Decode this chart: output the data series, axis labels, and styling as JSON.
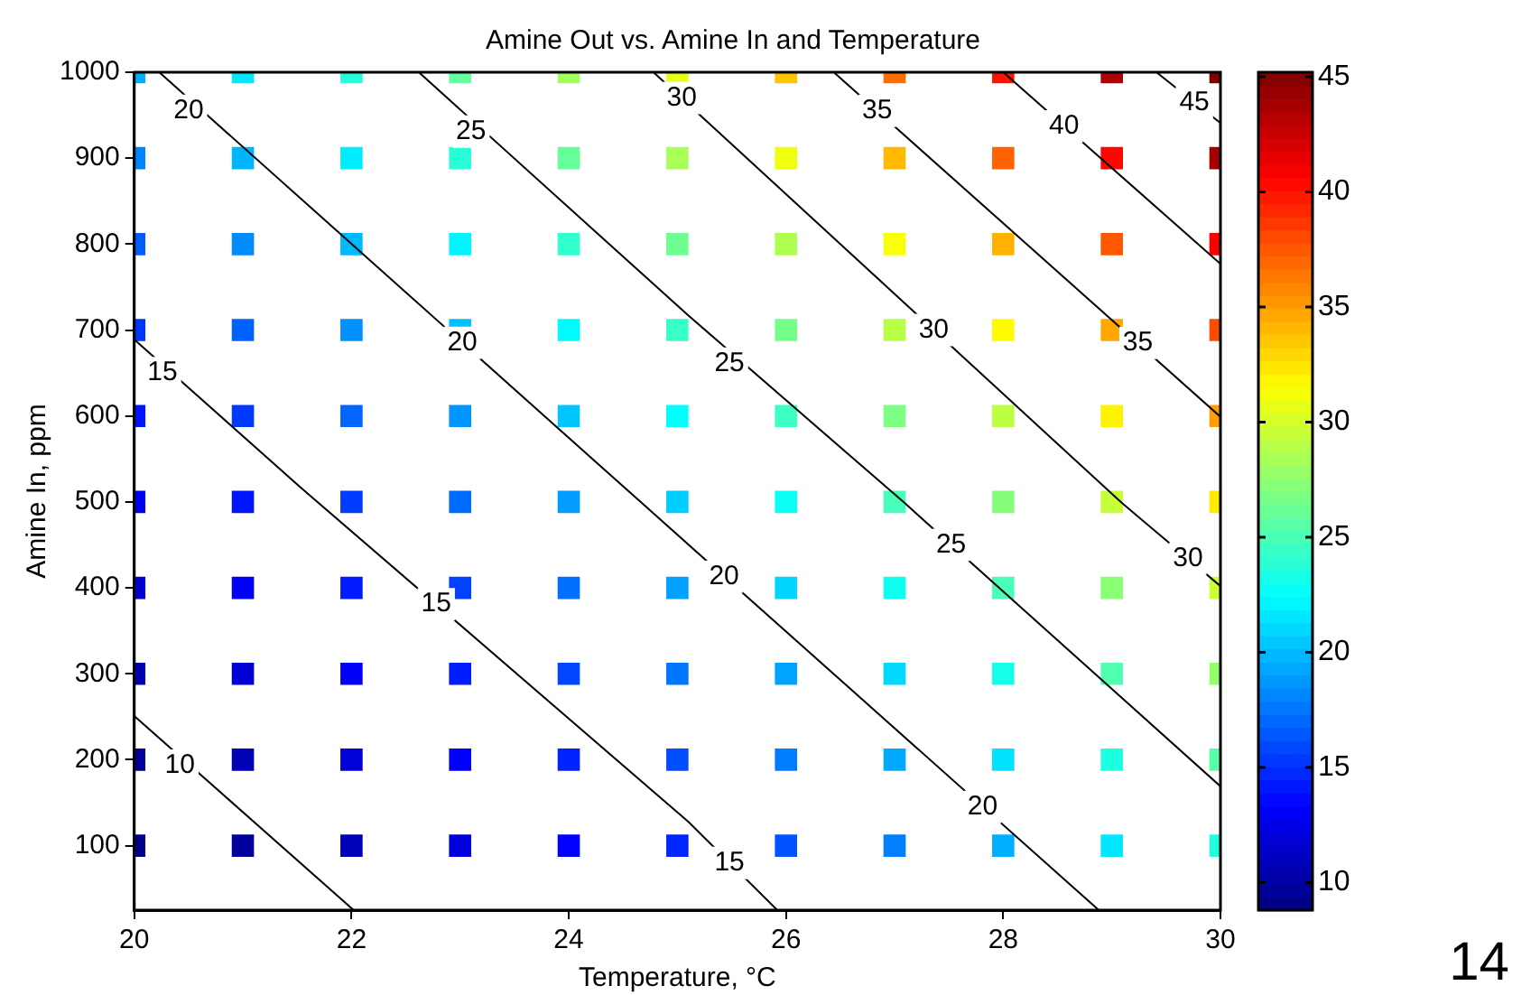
{
  "chart_data": {
    "type": "scatter",
    "title": "Amine Out vs. Amine In and Temperature",
    "xlabel": "Temperature, °C",
    "ylabel": "Amine In, ppm",
    "xlim": [
      20,
      30
    ],
    "xticks": [
      20,
      22,
      24,
      26,
      28,
      30
    ],
    "ylim": [
      25,
      1000
    ],
    "yticks": [
      100,
      200,
      300,
      400,
      500,
      600,
      700,
      800,
      900,
      1000
    ],
    "clim": [
      8.8,
      45.2
    ],
    "cticks": [
      10,
      15,
      20,
      25,
      30,
      35,
      40,
      45
    ],
    "grid": false,
    "legend": false,
    "marker": "square",
    "series": [
      {
        "type": "scatter",
        "x": [
          20,
          21,
          22,
          23,
          24,
          25,
          26,
          27,
          28,
          29,
          30,
          20,
          21,
          22,
          23,
          24,
          25,
          26,
          27,
          28,
          29,
          30,
          20,
          21,
          22,
          23,
          24,
          25,
          26,
          27,
          28,
          29,
          30,
          20,
          21,
          22,
          23,
          24,
          25,
          26,
          27,
          28,
          29,
          30,
          20,
          21,
          22,
          23,
          24,
          25,
          26,
          27,
          28,
          29,
          30,
          20,
          21,
          22,
          23,
          24,
          25,
          26,
          27,
          28,
          29,
          30,
          20,
          21,
          22,
          23,
          24,
          25,
          26,
          27,
          28,
          29,
          30,
          20,
          21,
          22,
          23,
          24,
          25,
          26,
          27,
          28,
          29,
          30,
          20,
          21,
          22,
          23,
          24,
          25,
          26,
          27,
          28,
          29,
          30,
          20,
          21,
          22,
          23,
          24,
          25,
          26,
          27,
          28,
          29,
          30
        ],
        "values": [
          100,
          100,
          100,
          100,
          100,
          100,
          100,
          100,
          100,
          100,
          100,
          200,
          200,
          200,
          200,
          200,
          200,
          200,
          200,
          200,
          200,
          200,
          300,
          300,
          300,
          300,
          300,
          300,
          300,
          300,
          300,
          300,
          300,
          400,
          400,
          400,
          400,
          400,
          400,
          400,
          400,
          400,
          400,
          400,
          500,
          500,
          500,
          500,
          500,
          500,
          500,
          500,
          500,
          500,
          500,
          600,
          600,
          600,
          600,
          600,
          600,
          600,
          600,
          600,
          600,
          600,
          700,
          700,
          700,
          700,
          700,
          700,
          700,
          700,
          700,
          700,
          700,
          800,
          800,
          800,
          800,
          800,
          800,
          800,
          800,
          800,
          800,
          800,
          900,
          900,
          900,
          900,
          900,
          900,
          900,
          900,
          900,
          900,
          900,
          1000,
          1000,
          1000,
          1000,
          1000,
          1000,
          1000,
          1000,
          1000,
          1000,
          1000
        ],
        "colors": [
          "#00008b",
          "#00009c",
          "#0000b8",
          "#0000dc",
          "#0001ff",
          "#0026ff",
          "#0053ff",
          "#0080ff",
          "#00afff",
          "#00e7ff",
          "#23ffdc",
          "#000099",
          "#0000b5",
          "#0000d9",
          "#0000fe",
          "#0023ff",
          "#004dff",
          "#007dff",
          "#00aaff",
          "#00e2ff",
          "#1dffe2",
          "#58ffa7",
          "#0000b2",
          "#0000d4",
          "#0000f8",
          "#001dff",
          "#0047ff",
          "#0077ff",
          "#00a4ff",
          "#00d9ff",
          "#15ffea",
          "#50ffaf",
          "#93ff6c",
          "#0000d1",
          "#0000f5",
          "#001bff",
          "#0042ff",
          "#0071ff",
          "#00a1ff",
          "#00d4ff",
          "#0ffff0",
          "#4affb5",
          "#8bff74",
          "#cbff34",
          "#0000f0",
          "#0015ff",
          "#003cff",
          "#006cff",
          "#009cff",
          "#00ceff",
          "#0afff5",
          "#45ffba",
          "#85ff7a",
          "#c6ff39",
          "#ffea00",
          "#0012ff",
          "#0039ff",
          "#0066ff",
          "#0096ff",
          "#00c6ff",
          "#01fffe",
          "#3cffc3",
          "#7dff82",
          "#bdff42",
          "#fff300",
          "#ff9e00",
          "#0034ff",
          "#0061ff",
          "#0090ff",
          "#00c0ff",
          "#00fbff",
          "#37ffc8",
          "#74ff8b",
          "#b8ff47",
          "#fffb00",
          "#ffa700",
          "#ff4d00",
          "#005eff",
          "#008bff",
          "#00baff",
          "#00f5ff",
          "#31ffce",
          "#6fff90",
          "#afff50",
          "#f8ff07",
          "#ffb200",
          "#ff5800",
          "#fb0000",
          "#0085ff",
          "#00b5ff",
          "#00edff",
          "#29ffd6",
          "#66ff99",
          "#a7ff58",
          "#f0ff0f",
          "#ffba00",
          "#ff6300",
          "#ff0700",
          "#a40000",
          "#00afff",
          "#00e7ff",
          "#23ffdc",
          "#61ff9e",
          "#a1ff5e",
          "#e7ff18",
          "#ffc300",
          "#ff6c00",
          "#ff1200",
          "#af0000",
          "#800000"
        ],
        "cvalues": [
          9.2,
          9.8,
          10.8,
          12.1,
          13.4,
          14.7,
          16.3,
          17.9,
          19.6,
          21.6,
          23.7,
          9.7,
          10.7,
          12.0,
          13.3,
          14.6,
          16.1,
          17.8,
          19.4,
          21.4,
          23.5,
          25.6,
          10.6,
          11.8,
          13.1,
          14.4,
          15.9,
          17.6,
          19.2,
          21.1,
          23.2,
          25.3,
          27.7,
          11.7,
          13.0,
          14.3,
          15.7,
          17.4,
          19.1,
          20.9,
          23.0,
          25.1,
          27.4,
          29.7,
          12.8,
          14.1,
          15.5,
          17.2,
          18.9,
          20.7,
          22.8,
          24.9,
          27.2,
          29.5,
          32.3,
          14.0,
          15.4,
          17.0,
          18.7,
          20.4,
          22.5,
          24.6,
          26.9,
          29.2,
          32.0,
          35.0,
          15.2,
          16.8,
          18.5,
          20.2,
          22.3,
          24.4,
          26.6,
          29.0,
          31.7,
          34.7,
          37.9,
          16.7,
          18.3,
          20.0,
          22.1,
          24.2,
          26.4,
          28.7,
          31.3,
          34.3,
          37.5,
          40.8,
          18.1,
          19.8,
          21.8,
          23.9,
          26.1,
          28.4,
          31.0,
          34.0,
          37.1,
          40.4,
          43.9,
          19.6,
          21.6,
          23.7,
          25.9,
          28.2,
          30.7,
          33.7,
          36.8,
          40.0,
          43.5,
          45.2
        ]
      },
      {
        "type": "line",
        "color": "#000000",
        "marker": "none",
        "x": [
          20,
          22.02
        ],
        "values": [
          251,
          25
        ]
      },
      {
        "type": "line",
        "color": "#000000",
        "marker": "none",
        "x": [
          20,
          21.53,
          25.1,
          25.92
        ],
        "values": [
          689,
          517,
          128,
          25
        ]
      },
      {
        "type": "line",
        "color": "#000000",
        "marker": "none",
        "x": [
          20.23,
          24.67,
          28.88
        ],
        "values": [
          1000,
          499,
          25
        ]
      },
      {
        "type": "line",
        "color": "#000000",
        "marker": "none",
        "x": [
          22.62,
          25.1,
          27.09,
          30
        ],
        "values": [
          1000,
          717,
          499,
          169
        ]
      },
      {
        "type": "line",
        "color": "#000000",
        "marker": "none",
        "x": [
          24.78,
          29.09,
          30
        ],
        "values": [
          1000,
          499,
          402
        ]
      },
      {
        "type": "line",
        "color": "#000000",
        "marker": "none",
        "x": [
          26.44,
          30
        ],
        "values": [
          1000,
          599
        ]
      },
      {
        "type": "line",
        "color": "#000000",
        "marker": "none",
        "x": [
          28,
          30
        ],
        "values": [
          1000,
          777
        ]
      },
      {
        "type": "line",
        "color": "#000000",
        "marker": "none",
        "x": [
          29.41,
          30
        ],
        "values": [
          1000,
          941
        ]
      }
    ],
    "annotations": [
      {
        "text": "20",
        "x": 20.5,
        "y": 955
      },
      {
        "text": "25",
        "x": 23.1,
        "y": 931
      },
      {
        "text": "30",
        "x": 25.04,
        "y": 970
      },
      {
        "text": "35",
        "x": 26.84,
        "y": 955
      },
      {
        "text": "40",
        "x": 28.56,
        "y": 937
      },
      {
        "text": "45",
        "x": 29.76,
        "y": 965
      },
      {
        "text": "15",
        "x": 20.26,
        "y": 650
      },
      {
        "text": "20",
        "x": 23.02,
        "y": 685
      },
      {
        "text": "25",
        "x": 25.48,
        "y": 661
      },
      {
        "text": "30",
        "x": 27.36,
        "y": 700
      },
      {
        "text": "35",
        "x": 29.24,
        "y": 685
      },
      {
        "text": "10",
        "x": 20.42,
        "y": 193
      },
      {
        "text": "15",
        "x": 22.78,
        "y": 381
      },
      {
        "text": "20",
        "x": 25.43,
        "y": 413
      },
      {
        "text": "25",
        "x": 27.52,
        "y": 450
      },
      {
        "text": "30",
        "x": 29.7,
        "y": 434
      },
      {
        "text": "15",
        "x": 25.48,
        "y": 80
      },
      {
        "text": "20",
        "x": 27.81,
        "y": 145
      },
      "14"
    ]
  }
}
